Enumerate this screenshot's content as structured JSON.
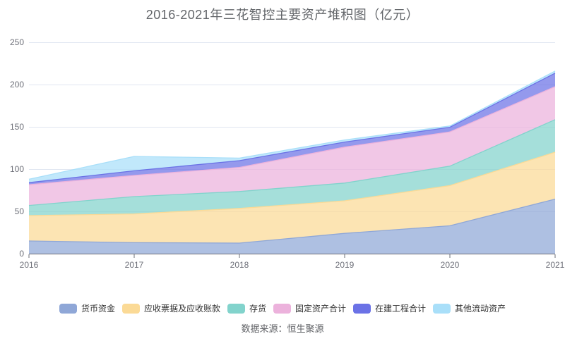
{
  "title": "2016-2021年三花智控主要资产堆积图（亿元）",
  "source": "数据来源：恒生聚源",
  "colors": {
    "axis_label": "#6E7079",
    "axis_line": "#6E7079",
    "grid_line": "#E0E6F1",
    "title_text": "#63666A",
    "legend_text": "#333333",
    "source_text": "#606266",
    "background": "#FFFFFF"
  },
  "chart_data": {
    "type": "area",
    "stacked": true,
    "title": "2016-2021年三花智控主要资产堆积图（亿元）",
    "x": [
      "2016",
      "2017",
      "2018",
      "2019",
      "2020",
      "2021"
    ],
    "yticks": [
      0,
      50,
      100,
      150,
      200,
      250
    ],
    "ylim": [
      0,
      250
    ],
    "grid": true,
    "legend_position": "bottom",
    "unit": "亿元",
    "series": [
      {
        "name": "货币资金",
        "color": "#8FA7D7",
        "values": [
          15,
          13,
          12.5,
          24,
          33,
          64.5
        ]
      },
      {
        "name": "应收票据及应收账款",
        "color": "#FBDA96",
        "values": [
          30,
          34,
          41,
          38.5,
          47.5,
          55.5
        ]
      },
      {
        "name": "存货",
        "color": "#82D3CC",
        "values": [
          12,
          20.5,
          20,
          21,
          23,
          38.5
        ]
      },
      {
        "name": "固定资产合计",
        "color": "#ECB2DC",
        "values": [
          24.5,
          25,
          28.5,
          42.5,
          40.5,
          39
        ]
      },
      {
        "name": "在建工程合计",
        "color": "#6B72E6",
        "values": [
          2.5,
          5.5,
          8,
          6,
          5.5,
          16
        ]
      },
      {
        "name": "其他流动资产",
        "color": "#A9DFF9",
        "values": [
          4,
          17,
          3,
          2.5,
          1.5,
          2.5
        ]
      }
    ]
  }
}
